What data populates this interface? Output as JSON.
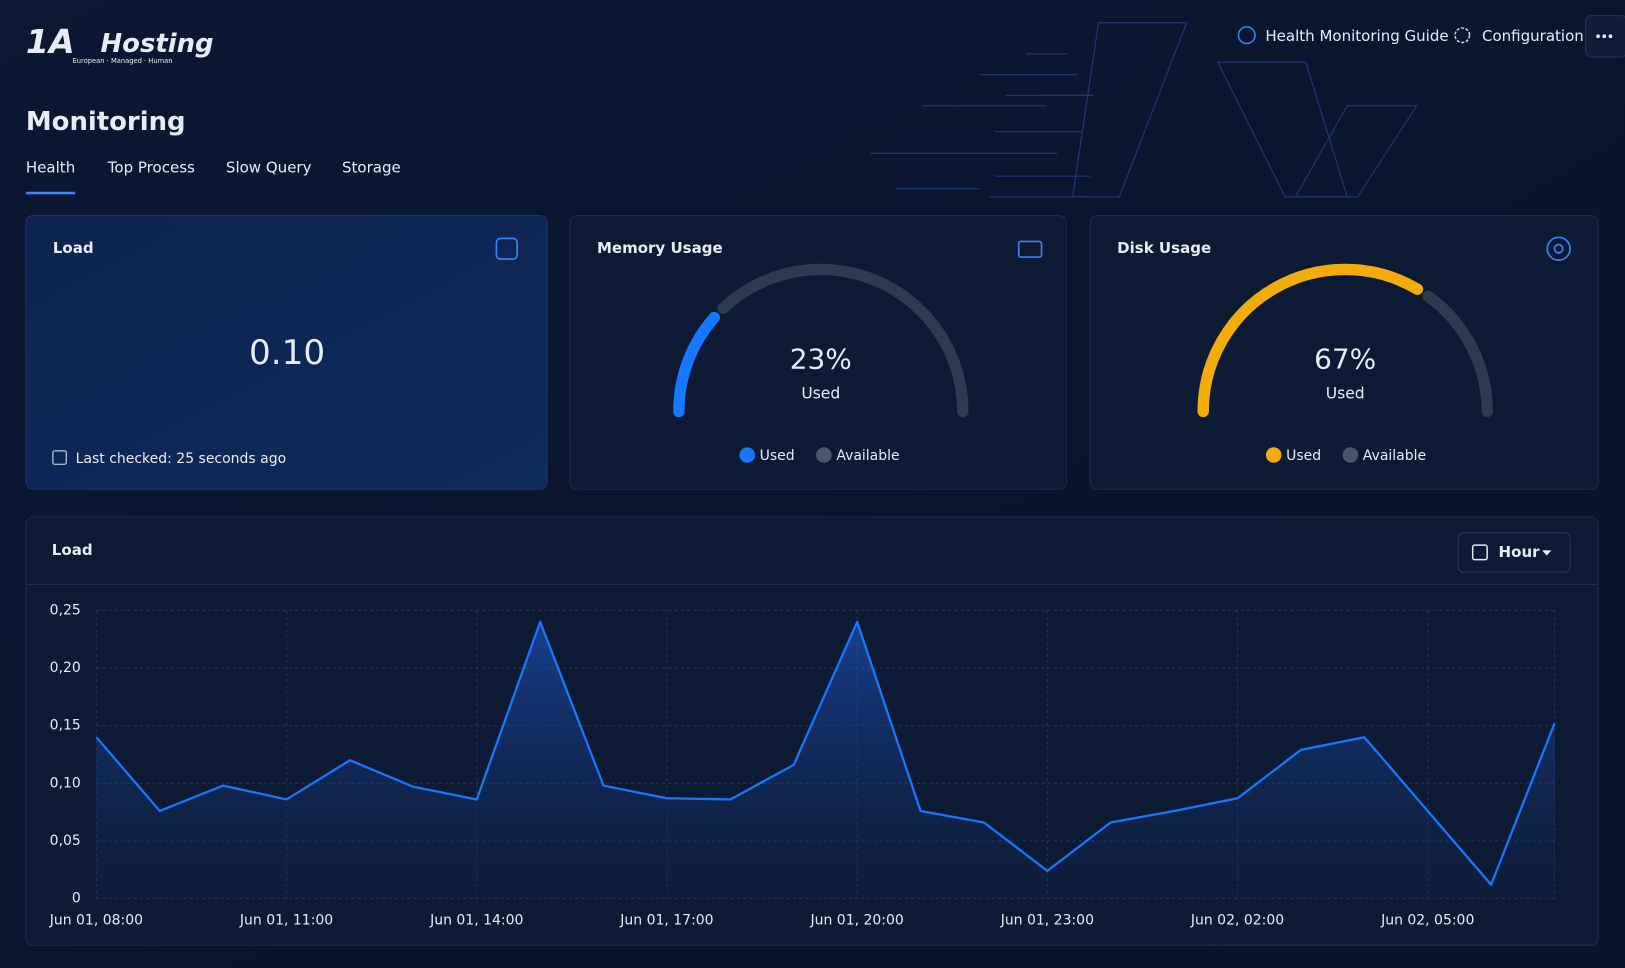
{
  "header": {
    "logo": {
      "mark": "1A",
      "name": "Hosting",
      "tagline": "European · Managed · Human"
    },
    "links": [
      "Health Monitoring Guide",
      "Configuration"
    ]
  },
  "page": {
    "title": "Monitoring",
    "tabs": [
      "Health",
      "Top Process",
      "Slow Query",
      "Storage"
    ],
    "active_tab": 0
  },
  "load_card": {
    "title": "Load",
    "value": "0.10",
    "last_checked": "Last checked: 25 seconds ago"
  },
  "gauges": [
    {
      "title": "Memory Usage",
      "value": 23,
      "value_label": "23%",
      "caption": "Used",
      "legend": [
        "Used",
        "Available"
      ],
      "colors": [
        "#1677ff",
        "#2e3a4f"
      ]
    },
    {
      "title": "Disk Usage",
      "value": 67,
      "value_label": "67%",
      "caption": "Used",
      "legend": [
        "Used",
        "Available"
      ],
      "colors": [
        "#f2ad0c",
        "#2e3a4f"
      ]
    }
  ],
  "chart_controls": {
    "range": "Hour"
  },
  "chart_data": {
    "type": "area",
    "title": "Load",
    "color": "#1677ff",
    "grid": true,
    "categories": [
      "Jun 01, 08:00",
      null,
      null,
      "Jun 01, 11:00",
      null,
      null,
      "Jun 01, 14:00",
      null,
      null,
      "Jun 01, 17:00",
      null,
      null,
      "Jun 01, 20:00",
      null,
      null,
      "Jun 01, 23:00",
      null,
      null,
      "Jun 02, 02:00",
      null,
      null,
      "Jun 02, 05:00",
      null,
      null
    ],
    "values": [
      0.14,
      0.076,
      0.098,
      0.086,
      0.12,
      0.097,
      0.086,
      0.24,
      0.098,
      0.087,
      0.086,
      0.116,
      0.24,
      0.076,
      0.066,
      0.024,
      0.066,
      0.076,
      0.087,
      0.129,
      0.14,
      0.076,
      0.012,
      0.152
    ],
    "ylim": [
      0,
      0.25
    ],
    "yticks": [
      0,
      {
        "value": 0.05,
        "label": "0,05"
      },
      {
        "value": 0.1,
        "label": "0,10"
      },
      {
        "value": 0.15,
        "label": "0,15"
      },
      {
        "value": 0.2,
        "label": "0,20"
      },
      {
        "value": 0.25,
        "label": "0,25"
      }
    ]
  }
}
